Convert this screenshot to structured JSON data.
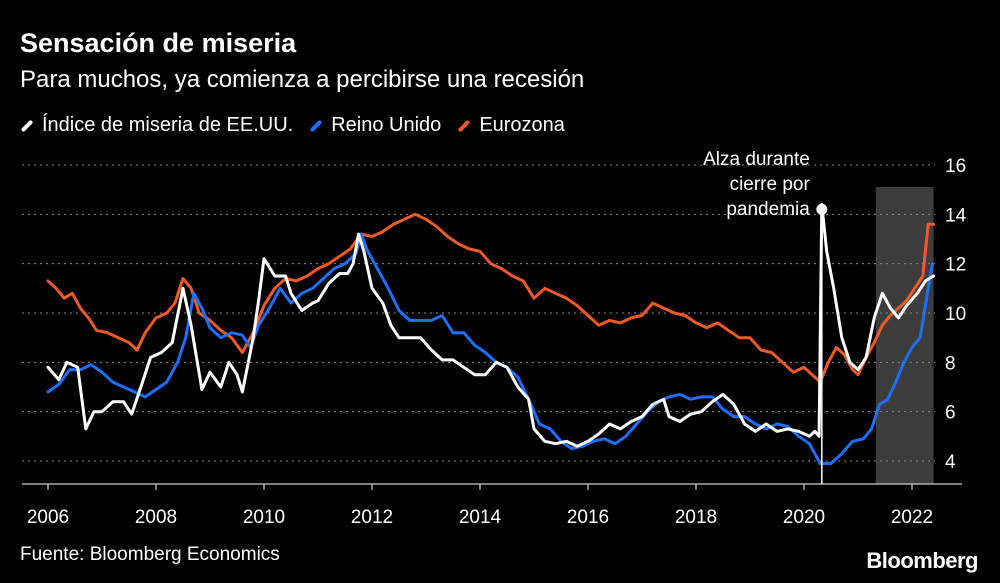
{
  "title": "Sensación de miseria",
  "subtitle": "Para muchos, ya comienza a percibirse una recesión",
  "source": "Fuente: Bloomberg Economics",
  "brand": "Bloomberg",
  "chart_data": {
    "type": "line",
    "title": "Sensación de miseria",
    "subtitle": "Para muchos, ya comienza a percibirse una recesión",
    "x_ticks": [
      "2006",
      "2008",
      "2010",
      "2012",
      "2014",
      "2016",
      "2018",
      "2020",
      "2022"
    ],
    "y_ticks": [
      "4",
      "6",
      "8",
      "10",
      "12",
      "14",
      "16"
    ],
    "xlim": [
      2005.95,
      2023.3
    ],
    "ylim": [
      2.0,
      16.0
    ],
    "y_axis_side": "right",
    "grid": "horizontal dotted",
    "legend_position": "top-left",
    "shaded_region": {
      "x": [
        2021.33,
        2022.4
      ],
      "color": "#3d3d3d"
    },
    "annotation": {
      "lines": [
        "Alza durante",
        "cierre por",
        "pandemia"
      ],
      "x": 2020.33,
      "y": 14.2
    },
    "series": [
      {
        "name": "Índice de miseria de EE.UU.",
        "color": "#ffffff",
        "points": [
          [
            2006.0,
            7.8
          ],
          [
            2006.2,
            7.3
          ],
          [
            2006.35,
            8.0
          ],
          [
            2006.55,
            7.8
          ],
          [
            2006.7,
            5.3
          ],
          [
            2006.85,
            6.0
          ],
          [
            2007.0,
            6.0
          ],
          [
            2007.2,
            6.4
          ],
          [
            2007.4,
            6.4
          ],
          [
            2007.55,
            5.9
          ],
          [
            2007.75,
            7.2
          ],
          [
            2007.9,
            8.2
          ],
          [
            2008.1,
            8.4
          ],
          [
            2008.3,
            8.8
          ],
          [
            2008.5,
            11.0
          ],
          [
            2008.65,
            9.5
          ],
          [
            2008.85,
            6.9
          ],
          [
            2009.0,
            7.6
          ],
          [
            2009.2,
            7.0
          ],
          [
            2009.35,
            8.0
          ],
          [
            2009.5,
            7.5
          ],
          [
            2009.6,
            6.8
          ],
          [
            2009.8,
            9.0
          ],
          [
            2009.9,
            10.5
          ],
          [
            2010.0,
            12.2
          ],
          [
            2010.2,
            11.5
          ],
          [
            2010.4,
            11.5
          ],
          [
            2010.5,
            10.8
          ],
          [
            2010.7,
            10.1
          ],
          [
            2010.9,
            10.4
          ],
          [
            2011.0,
            10.5
          ],
          [
            2011.2,
            11.2
          ],
          [
            2011.4,
            11.6
          ],
          [
            2011.55,
            11.6
          ],
          [
            2011.65,
            12.0
          ],
          [
            2011.75,
            13.2
          ],
          [
            2011.85,
            12.5
          ],
          [
            2012.0,
            11.0
          ],
          [
            2012.2,
            10.4
          ],
          [
            2012.35,
            9.5
          ],
          [
            2012.5,
            9.0
          ],
          [
            2012.7,
            9.0
          ],
          [
            2012.9,
            9.0
          ],
          [
            2013.1,
            8.5
          ],
          [
            2013.3,
            8.1
          ],
          [
            2013.5,
            8.1
          ],
          [
            2013.7,
            7.8
          ],
          [
            2013.9,
            7.5
          ],
          [
            2014.1,
            7.5
          ],
          [
            2014.3,
            8.0
          ],
          [
            2014.5,
            7.8
          ],
          [
            2014.7,
            7.0
          ],
          [
            2014.9,
            6.5
          ],
          [
            2015.0,
            5.3
          ],
          [
            2015.2,
            4.8
          ],
          [
            2015.4,
            4.7
          ],
          [
            2015.6,
            4.8
          ],
          [
            2015.8,
            4.6
          ],
          [
            2016.0,
            4.8
          ],
          [
            2016.2,
            5.1
          ],
          [
            2016.4,
            5.5
          ],
          [
            2016.6,
            5.3
          ],
          [
            2016.8,
            5.6
          ],
          [
            2017.0,
            5.8
          ],
          [
            2017.2,
            6.3
          ],
          [
            2017.4,
            6.5
          ],
          [
            2017.5,
            5.8
          ],
          [
            2017.7,
            5.6
          ],
          [
            2017.9,
            5.9
          ],
          [
            2018.1,
            6.0
          ],
          [
            2018.3,
            6.4
          ],
          [
            2018.5,
            6.7
          ],
          [
            2018.7,
            6.3
          ],
          [
            2018.9,
            5.5
          ],
          [
            2019.1,
            5.2
          ],
          [
            2019.3,
            5.5
          ],
          [
            2019.5,
            5.2
          ],
          [
            2019.7,
            5.3
          ],
          [
            2019.9,
            5.2
          ],
          [
            2020.1,
            5.0
          ],
          [
            2020.2,
            5.2
          ],
          [
            2020.28,
            5.0
          ],
          [
            2020.33,
            14.4
          ],
          [
            2020.42,
            12.5
          ],
          [
            2020.55,
            11.0
          ],
          [
            2020.7,
            9.0
          ],
          [
            2020.85,
            8.0
          ],
          [
            2021.0,
            7.7
          ],
          [
            2021.15,
            8.2
          ],
          [
            2021.3,
            9.8
          ],
          [
            2021.45,
            10.8
          ],
          [
            2021.6,
            10.2
          ],
          [
            2021.75,
            9.8
          ],
          [
            2021.9,
            10.3
          ],
          [
            2022.1,
            10.8
          ],
          [
            2022.25,
            11.3
          ],
          [
            2022.4,
            11.5
          ]
        ]
      },
      {
        "name": "Reino Unido",
        "color": "#1f6fff",
        "points": [
          [
            2006.0,
            6.8
          ],
          [
            2006.2,
            7.1
          ],
          [
            2006.4,
            7.7
          ],
          [
            2006.6,
            7.7
          ],
          [
            2006.8,
            7.9
          ],
          [
            2007.0,
            7.6
          ],
          [
            2007.2,
            7.2
          ],
          [
            2007.4,
            7.0
          ],
          [
            2007.6,
            6.8
          ],
          [
            2007.8,
            6.6
          ],
          [
            2008.0,
            6.9
          ],
          [
            2008.2,
            7.2
          ],
          [
            2008.4,
            8.0
          ],
          [
            2008.55,
            9.0
          ],
          [
            2008.7,
            10.8
          ],
          [
            2008.85,
            10.2
          ],
          [
            2009.0,
            9.4
          ],
          [
            2009.2,
            9.0
          ],
          [
            2009.4,
            9.2
          ],
          [
            2009.6,
            9.1
          ],
          [
            2009.75,
            8.6
          ],
          [
            2009.9,
            9.5
          ],
          [
            2010.1,
            10.2
          ],
          [
            2010.3,
            11.0
          ],
          [
            2010.5,
            10.4
          ],
          [
            2010.7,
            10.8
          ],
          [
            2010.9,
            11.0
          ],
          [
            2011.1,
            11.4
          ],
          [
            2011.3,
            11.8
          ],
          [
            2011.5,
            12.0
          ],
          [
            2011.7,
            12.4
          ],
          [
            2011.8,
            13.2
          ],
          [
            2011.9,
            12.6
          ],
          [
            2012.1,
            11.8
          ],
          [
            2012.3,
            11.0
          ],
          [
            2012.5,
            10.1
          ],
          [
            2012.7,
            9.7
          ],
          [
            2012.9,
            9.7
          ],
          [
            2013.1,
            9.7
          ],
          [
            2013.3,
            9.9
          ],
          [
            2013.5,
            9.2
          ],
          [
            2013.7,
            9.2
          ],
          [
            2013.9,
            8.7
          ],
          [
            2014.1,
            8.4
          ],
          [
            2014.3,
            8.0
          ],
          [
            2014.5,
            7.8
          ],
          [
            2014.7,
            7.4
          ],
          [
            2014.9,
            6.5
          ],
          [
            2015.1,
            5.5
          ],
          [
            2015.3,
            5.3
          ],
          [
            2015.5,
            4.8
          ],
          [
            2015.7,
            4.5
          ],
          [
            2015.9,
            4.6
          ],
          [
            2016.1,
            4.8
          ],
          [
            2016.3,
            4.9
          ],
          [
            2016.5,
            4.7
          ],
          [
            2016.7,
            5.0
          ],
          [
            2016.9,
            5.5
          ],
          [
            2017.1,
            6.0
          ],
          [
            2017.3,
            6.4
          ],
          [
            2017.5,
            6.6
          ],
          [
            2017.7,
            6.7
          ],
          [
            2017.9,
            6.5
          ],
          [
            2018.1,
            6.6
          ],
          [
            2018.3,
            6.6
          ],
          [
            2018.5,
            6.1
          ],
          [
            2018.7,
            5.8
          ],
          [
            2018.9,
            5.8
          ],
          [
            2019.1,
            5.5
          ],
          [
            2019.3,
            5.3
          ],
          [
            2019.5,
            5.5
          ],
          [
            2019.7,
            5.4
          ],
          [
            2019.9,
            5.0
          ],
          [
            2020.1,
            4.7
          ],
          [
            2020.3,
            3.9
          ],
          [
            2020.5,
            3.9
          ],
          [
            2020.7,
            4.3
          ],
          [
            2020.9,
            4.8
          ],
          [
            2021.1,
            4.9
          ],
          [
            2021.25,
            5.3
          ],
          [
            2021.4,
            6.3
          ],
          [
            2021.55,
            6.5
          ],
          [
            2021.7,
            7.2
          ],
          [
            2021.85,
            8.0
          ],
          [
            2022.0,
            8.6
          ],
          [
            2022.15,
            9.0
          ],
          [
            2022.3,
            11.0
          ],
          [
            2022.38,
            12.0
          ]
        ]
      },
      {
        "name": "Eurozona",
        "color": "#f15a29",
        "points": [
          [
            2006.0,
            11.3
          ],
          [
            2006.15,
            11.0
          ],
          [
            2006.3,
            10.6
          ],
          [
            2006.45,
            10.8
          ],
          [
            2006.6,
            10.2
          ],
          [
            2006.75,
            9.8
          ],
          [
            2006.9,
            9.3
          ],
          [
            2007.1,
            9.2
          ],
          [
            2007.3,
            9.0
          ],
          [
            2007.5,
            8.8
          ],
          [
            2007.65,
            8.5
          ],
          [
            2007.8,
            9.2
          ],
          [
            2008.0,
            9.8
          ],
          [
            2008.2,
            10.0
          ],
          [
            2008.35,
            10.4
          ],
          [
            2008.5,
            11.4
          ],
          [
            2008.65,
            11.0
          ],
          [
            2008.8,
            10.0
          ],
          [
            2009.0,
            9.7
          ],
          [
            2009.2,
            9.3
          ],
          [
            2009.4,
            9.0
          ],
          [
            2009.6,
            8.4
          ],
          [
            2009.8,
            9.2
          ],
          [
            2010.0,
            10.3
          ],
          [
            2010.2,
            11.0
          ],
          [
            2010.4,
            11.4
          ],
          [
            2010.6,
            11.3
          ],
          [
            2010.8,
            11.5
          ],
          [
            2011.0,
            11.8
          ],
          [
            2011.2,
            12.0
          ],
          [
            2011.4,
            12.3
          ],
          [
            2011.6,
            12.6
          ],
          [
            2011.8,
            13.2
          ],
          [
            2012.0,
            13.1
          ],
          [
            2012.2,
            13.3
          ],
          [
            2012.4,
            13.6
          ],
          [
            2012.6,
            13.8
          ],
          [
            2012.8,
            14.0
          ],
          [
            2013.0,
            13.8
          ],
          [
            2013.2,
            13.5
          ],
          [
            2013.4,
            13.1
          ],
          [
            2013.6,
            12.8
          ],
          [
            2013.8,
            12.6
          ],
          [
            2014.0,
            12.5
          ],
          [
            2014.2,
            12.0
          ],
          [
            2014.4,
            11.8
          ],
          [
            2014.6,
            11.5
          ],
          [
            2014.8,
            11.3
          ],
          [
            2015.0,
            10.6
          ],
          [
            2015.2,
            11.0
          ],
          [
            2015.4,
            10.8
          ],
          [
            2015.6,
            10.6
          ],
          [
            2015.8,
            10.3
          ],
          [
            2016.0,
            9.9
          ],
          [
            2016.2,
            9.5
          ],
          [
            2016.4,
            9.7
          ],
          [
            2016.6,
            9.6
          ],
          [
            2016.8,
            9.8
          ],
          [
            2017.0,
            9.9
          ],
          [
            2017.2,
            10.4
          ],
          [
            2017.4,
            10.2
          ],
          [
            2017.6,
            10.0
          ],
          [
            2017.8,
            9.9
          ],
          [
            2018.0,
            9.6
          ],
          [
            2018.2,
            9.4
          ],
          [
            2018.4,
            9.6
          ],
          [
            2018.6,
            9.3
          ],
          [
            2018.8,
            9.0
          ],
          [
            2019.0,
            9.0
          ],
          [
            2019.2,
            8.5
          ],
          [
            2019.4,
            8.4
          ],
          [
            2019.6,
            8.0
          ],
          [
            2019.8,
            7.6
          ],
          [
            2020.0,
            7.8
          ],
          [
            2020.2,
            7.4
          ],
          [
            2020.3,
            7.2
          ],
          [
            2020.45,
            8.0
          ],
          [
            2020.6,
            8.6
          ],
          [
            2020.75,
            8.3
          ],
          [
            2020.9,
            7.7
          ],
          [
            2021.0,
            7.5
          ],
          [
            2021.15,
            8.2
          ],
          [
            2021.3,
            8.8
          ],
          [
            2021.45,
            9.5
          ],
          [
            2021.6,
            9.9
          ],
          [
            2021.75,
            10.2
          ],
          [
            2021.9,
            10.5
          ],
          [
            2022.05,
            11.0
          ],
          [
            2022.2,
            11.5
          ],
          [
            2022.3,
            13.6
          ],
          [
            2022.4,
            13.6
          ]
        ]
      }
    ]
  }
}
